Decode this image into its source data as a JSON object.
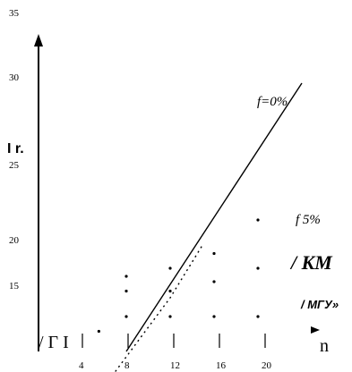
{
  "chart_data": {
    "type": "scatter",
    "x_ticks": [
      "4",
      "8",
      "12",
      "16",
      "20"
    ],
    "y_ticks": [
      "35",
      "30",
      "25",
      "20",
      "15"
    ],
    "y_axis_label": "I r.",
    "x_axis_label": "n",
    "series": [
      {
        "name": "f=0%",
        "style": "line",
        "points": [
          {
            "x": 8,
            "y": 12
          },
          {
            "x": 24,
            "y": 32
          }
        ]
      },
      {
        "name": "f 5%",
        "style": "dotted-line",
        "points": [
          {
            "x": 7,
            "y": 10.5
          },
          {
            "x": 12,
            "y": 16
          },
          {
            "x": 15,
            "y": 20
          }
        ]
      }
    ],
    "dots": [
      {
        "x": 5.5,
        "y": 13.5
      },
      {
        "x": 8,
        "y": 14.6
      },
      {
        "x": 8,
        "y": 16.5
      },
      {
        "x": 8,
        "y": 17.6
      },
      {
        "x": 12,
        "y": 14.6
      },
      {
        "x": 12,
        "y": 16.5
      },
      {
        "x": 12,
        "y": 18.2
      },
      {
        "x": 16,
        "y": 14.6
      },
      {
        "x": 16,
        "y": 17.2
      },
      {
        "x": 16,
        "y": 19.3
      },
      {
        "x": 20,
        "y": 14.6
      },
      {
        "x": 20,
        "y": 18.2
      },
      {
        "x": 20,
        "y": 21.8
      }
    ],
    "xlim": [
      0,
      24
    ],
    "ylim": [
      12,
      35
    ],
    "annotations": [
      {
        "id": "f0",
        "text": "f=0%"
      },
      {
        "id": "f5",
        "text": "f 5%"
      },
      {
        "id": "km",
        "text": "/ KM"
      },
      {
        "id": "mgu",
        "text": "/ MГУ»"
      },
      {
        "id": "gamma",
        "text": "/ Γ I"
      }
    ]
  }
}
